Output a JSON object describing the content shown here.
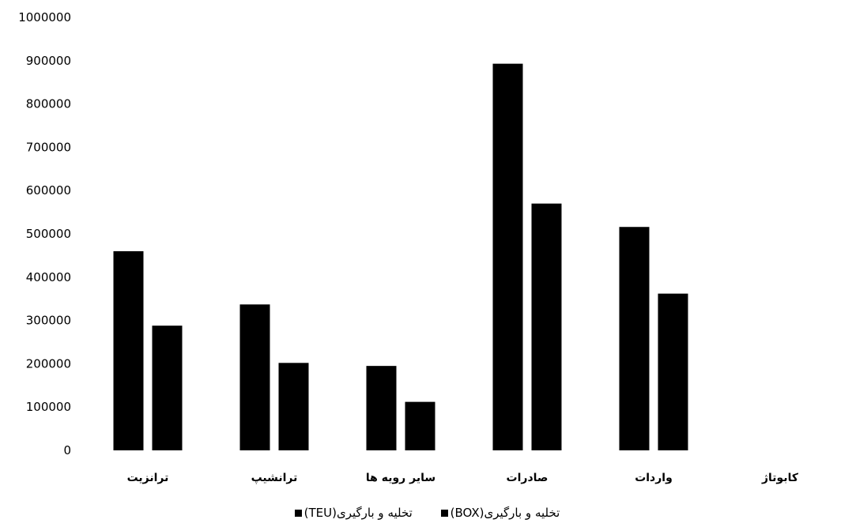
{
  "chart_data": {
    "type": "bar",
    "categories": [
      "ترانزیت",
      "ترانشیپ",
      "سایر رویه ها",
      "صادرات",
      "واردات",
      "کابوتاژ"
    ],
    "series": [
      {
        "name": "تخلیه و بارگیری(BOX)",
        "values": [
          460000,
          337000,
          195000,
          893000,
          516000,
          0
        ]
      },
      {
        "name": "تخلیه و بارگیری(TEU)",
        "values": [
          288000,
          202000,
          112000,
          570000,
          362000,
          0
        ]
      }
    ],
    "ylim": [
      0,
      1000000
    ],
    "yticks": [
      0,
      100000,
      200000,
      300000,
      400000,
      500000,
      600000,
      700000,
      800000,
      900000,
      1000000
    ],
    "colors": [
      "#000000",
      "#000000"
    ],
    "legend_position": "bottom",
    "grid": false
  }
}
